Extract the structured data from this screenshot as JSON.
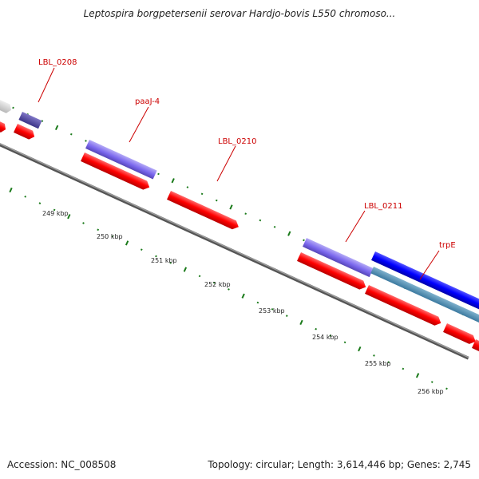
{
  "title": "Leptospira borgpetersenii serovar Hardjo-bovis L550 chromoso...",
  "footer": {
    "accession": "Accession: NC_008508",
    "summary": "Topology: circular; Length: 3,614,446 bp; Genes: 2,745"
  },
  "gene_labels": [
    "LBL_0208",
    "paaJ-4",
    "LBL_0210",
    "LBL_0211",
    "trpE"
  ],
  "tick_labels": [
    "249 kbp",
    "250 kbp",
    "251 kbp",
    "252 kbp",
    "253 kbp",
    "254 kbp",
    "255 kbp",
    "256 kbp"
  ],
  "colors": {
    "cds_forward": "#ff0000",
    "gene_purple": "#7b68ee",
    "gene_blue": "#0000ff",
    "backbone": "#808080",
    "ticks": "#1a7a1a",
    "labels": "#cc0000"
  }
}
